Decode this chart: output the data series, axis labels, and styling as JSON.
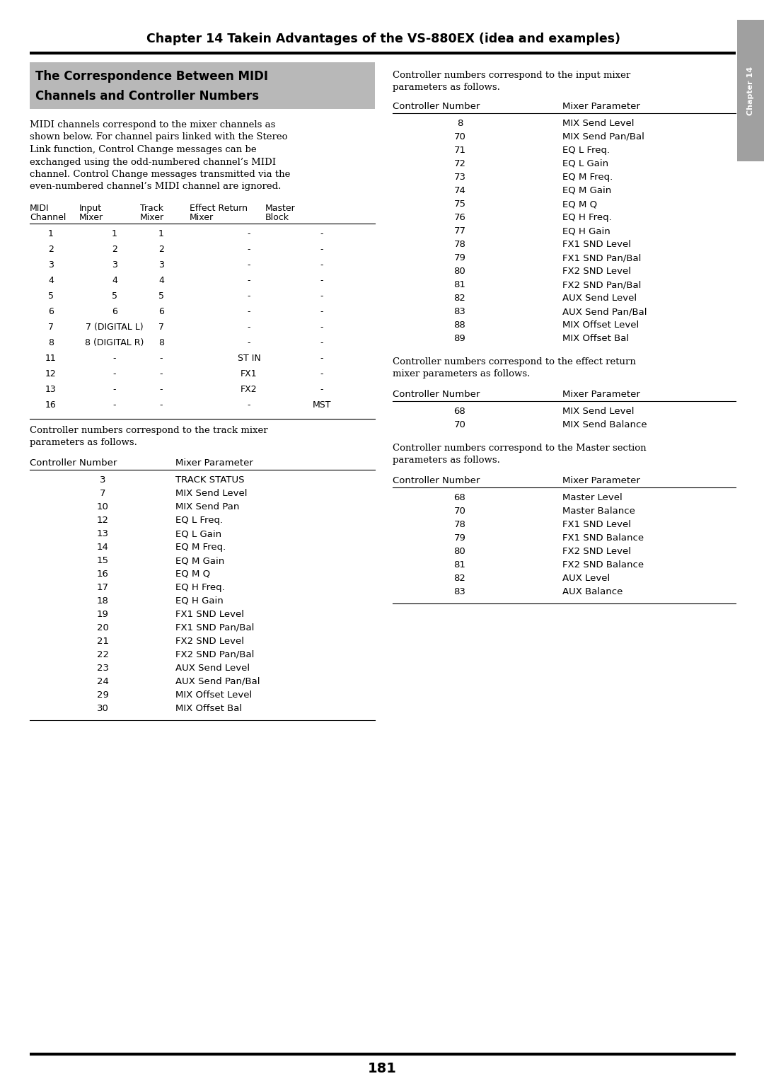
{
  "page_title": "Chapter 14 Takein Advantages of the VS-880EX (idea and examples)",
  "chapter_tab": "Chapter 14",
  "section_title_line1": "The Correspondence Between MIDI",
  "section_title_line2": "Channels and Controller Numbers",
  "section_title_bg": "#b8b8b8",
  "body_lines": [
    "MIDI channels correspond to the mixer channels as",
    "shown below. For channel pairs linked with the Stereo",
    "Link function, Control Change messages can be",
    "exchanged using the odd-numbered channel’s MIDI",
    "channel. Control Change messages transmitted via the",
    "even-numbered channel’s MIDI channel are ignored."
  ],
  "midi_table_rows": [
    [
      "1",
      "1",
      "1",
      "-",
      "-"
    ],
    [
      "2",
      "2",
      "2",
      "-",
      "-"
    ],
    [
      "3",
      "3",
      "3",
      "-",
      "-"
    ],
    [
      "4",
      "4",
      "4",
      "-",
      "-"
    ],
    [
      "5",
      "5",
      "5",
      "-",
      "-"
    ],
    [
      "6",
      "6",
      "6",
      "-",
      "-"
    ],
    [
      "7",
      "7 (DIGITAL L)",
      "7",
      "-",
      "-"
    ],
    [
      "8",
      "8 (DIGITAL R)",
      "8",
      "-",
      "-"
    ],
    [
      "11",
      "-",
      "-",
      "ST IN",
      "-"
    ],
    [
      "12",
      "-",
      "-",
      "FX1",
      "-"
    ],
    [
      "13",
      "-",
      "-",
      "FX2",
      "-"
    ],
    [
      "16",
      "-",
      "-",
      "-",
      "MST"
    ]
  ],
  "track_intro": [
    "Controller numbers correspond to the track mixer",
    "parameters as follows."
  ],
  "track_table_rows": [
    [
      "3",
      "TRACK STATUS"
    ],
    [
      "7",
      "MIX Send Level"
    ],
    [
      "10",
      "MIX Send Pan"
    ],
    [
      "12",
      "EQ L Freq."
    ],
    [
      "13",
      "EQ L Gain"
    ],
    [
      "14",
      "EQ M Freq."
    ],
    [
      "15",
      "EQ M Gain"
    ],
    [
      "16",
      "EQ M Q"
    ],
    [
      "17",
      "EQ H Freq."
    ],
    [
      "18",
      "EQ H Gain"
    ],
    [
      "19",
      "FX1 SND Level"
    ],
    [
      "20",
      "FX1 SND Pan/Bal"
    ],
    [
      "21",
      "FX2 SND Level"
    ],
    [
      "22",
      "FX2 SND Pan/Bal"
    ],
    [
      "23",
      "AUX Send Level"
    ],
    [
      "24",
      "AUX Send Pan/Bal"
    ],
    [
      "29",
      "MIX Offset Level"
    ],
    [
      "30",
      "MIX Offset Bal"
    ]
  ],
  "input_intro": [
    "Controller numbers correspond to the input mixer",
    "parameters as follows."
  ],
  "input_table_rows": [
    [
      "8",
      "MIX Send Level"
    ],
    [
      "70",
      "MIX Send Pan/Bal"
    ],
    [
      "71",
      "EQ L Freq."
    ],
    [
      "72",
      "EQ L Gain"
    ],
    [
      "73",
      "EQ M Freq."
    ],
    [
      "74",
      "EQ M Gain"
    ],
    [
      "75",
      "EQ M Q"
    ],
    [
      "76",
      "EQ H Freq."
    ],
    [
      "77",
      "EQ H Gain"
    ],
    [
      "78",
      "FX1 SND Level"
    ],
    [
      "79",
      "FX1 SND Pan/Bal"
    ],
    [
      "80",
      "FX2 SND Level"
    ],
    [
      "81",
      "FX2 SND Pan/Bal"
    ],
    [
      "82",
      "AUX Send Level"
    ],
    [
      "83",
      "AUX Send Pan/Bal"
    ],
    [
      "88",
      "MIX Offset Level"
    ],
    [
      "89",
      "MIX Offset Bal"
    ]
  ],
  "effect_intro": [
    "Controller numbers correspond to the effect return",
    "mixer parameters as follows."
  ],
  "effect_table_rows": [
    [
      "68",
      "MIX Send Level"
    ],
    [
      "70",
      "MIX Send Balance"
    ]
  ],
  "master_intro": [
    "Controller numbers correspond to the Master section",
    "parameters as follows."
  ],
  "master_table_rows": [
    [
      "68",
      "Master Level"
    ],
    [
      "70",
      "Master Balance"
    ],
    [
      "78",
      "FX1 SND Level"
    ],
    [
      "79",
      "FX1 SND Balance"
    ],
    [
      "80",
      "FX2 SND Level"
    ],
    [
      "81",
      "FX2 SND Balance"
    ],
    [
      "82",
      "AUX Level"
    ],
    [
      "83",
      "AUX Balance"
    ]
  ],
  "page_number": "181",
  "bg_color": "#ffffff"
}
